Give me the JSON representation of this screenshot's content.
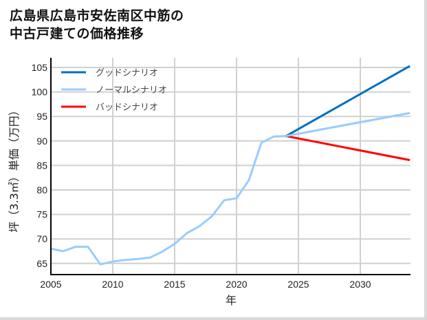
{
  "title": {
    "line1": "広島県広島市安佐南区中筋の",
    "line2": "中古戸建ての価格推移"
  },
  "colors": {
    "good": "#0070c0",
    "normal": "#99ccff",
    "bad": "#ff0000",
    "grid": "#d0d0d0",
    "axis": "#000000"
  },
  "chart_data": {
    "type": "line",
    "title": "広島県広島市安佐南区中筋の中古戸建ての価格推移",
    "xlabel": "年",
    "ylabel": "坪（3.3㎡）単価（万円）",
    "xlim": [
      2005,
      2034
    ],
    "ylim": [
      63,
      106
    ],
    "x_ticks": [
      2005,
      2010,
      2015,
      2020,
      2025,
      2030
    ],
    "y_ticks": [
      65,
      70,
      75,
      80,
      85,
      90,
      95,
      100,
      105
    ],
    "grid": true,
    "legend_position": "upper left",
    "series": [
      {
        "name": "グッドシナリオ",
        "color": "#0070c0",
        "x": [
          2024,
          2034
        ],
        "values": [
          91.0,
          105.3
        ]
      },
      {
        "name": "ノーマルシナリオ",
        "color": "#99ccff",
        "x": [
          2005,
          2006,
          2007,
          2008,
          2009,
          2010,
          2011,
          2012,
          2013,
          2014,
          2015,
          2016,
          2017,
          2018,
          2019,
          2020,
          2021,
          2022,
          2023,
          2024,
          2034
        ],
        "values": [
          68.0,
          67.5,
          68.4,
          68.4,
          64.8,
          65.4,
          65.7,
          65.9,
          66.2,
          67.4,
          69.0,
          71.2,
          72.6,
          74.6,
          77.9,
          78.3,
          82.0,
          89.6,
          90.9,
          91.0,
          95.7
        ]
      },
      {
        "name": "バッドシナリオ",
        "color": "#ff0000",
        "x": [
          2024,
          2034
        ],
        "values": [
          91.0,
          86.1
        ]
      }
    ]
  }
}
